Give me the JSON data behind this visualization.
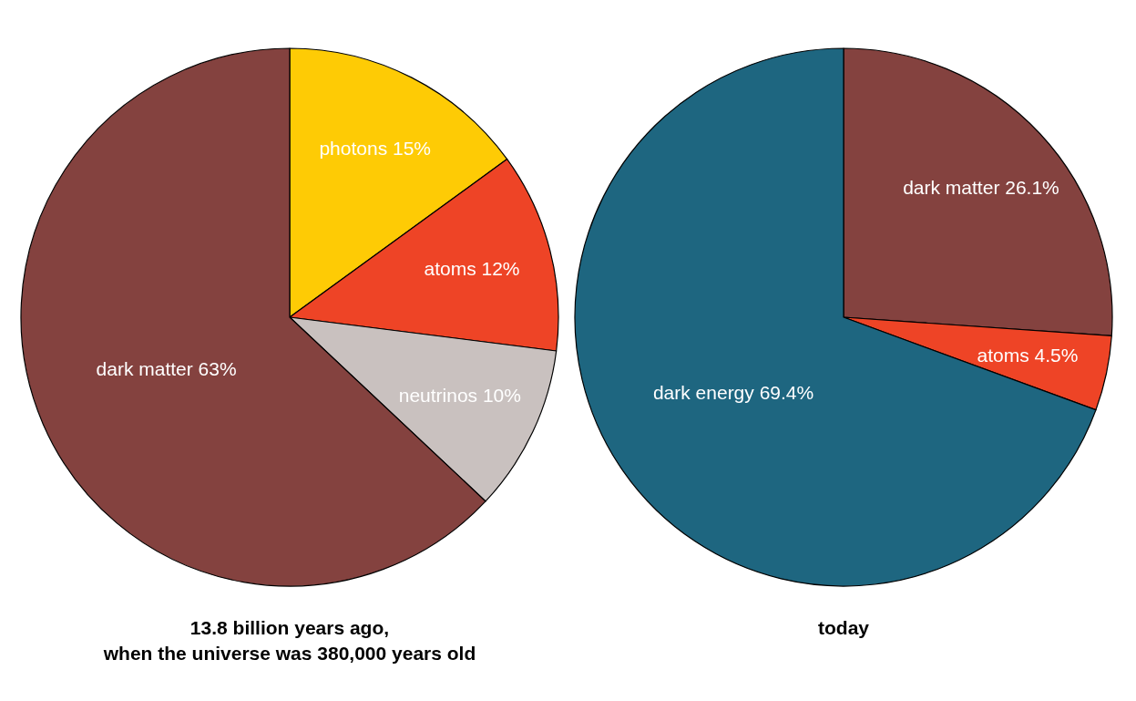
{
  "chart_data": [
    {
      "type": "pie",
      "title": "13.8 billion years ago,\nwhen the universe was 380,000 years old",
      "categories": [
        "photons",
        "atoms",
        "neutrinos",
        "dark matter"
      ],
      "values": [
        15,
        12,
        10,
        63
      ],
      "value_labels": [
        "15%",
        "12%",
        "10%",
        "63%"
      ],
      "colors": [
        "#fecb05",
        "#ee4426",
        "#c9c1bf",
        "#84423f"
      ]
    },
    {
      "type": "pie",
      "title": "today",
      "categories": [
        "dark matter",
        "atoms",
        "dark energy"
      ],
      "values": [
        26.1,
        4.5,
        69.4
      ],
      "value_labels": [
        "26.1%",
        "4.5%",
        "69.4%"
      ],
      "colors": [
        "#84423f",
        "#ee4426",
        "#1e6680"
      ]
    }
  ]
}
